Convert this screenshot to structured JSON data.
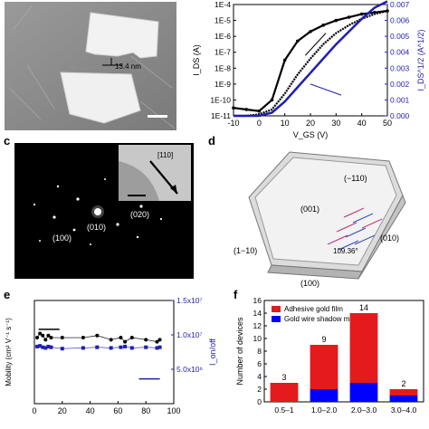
{
  "panels": {
    "a": {
      "label": "",
      "scale_text": "13.4 nm"
    },
    "b": {
      "label": "",
      "ylabel_left": "I_DS (A)",
      "ylabel_right": "I_DS^1/2 (A^1/2)",
      "xlabel": "V_GS (V)"
    },
    "c": {
      "label": "c",
      "spots": [
        "(010)",
        "(020)",
        "(100)"
      ],
      "inset_label": "[110]"
    },
    "d": {
      "label": "d",
      "faces": [
        "(001)",
        "(−110)",
        "(1−10)",
        "(010)",
        "(100)"
      ],
      "angle": "109.36°"
    },
    "e": {
      "label": "e",
      "ylabel_left": "Mobility (cm² V⁻¹ s⁻¹)",
      "ylabel_right": "I_on/off"
    },
    "f": {
      "label": "f",
      "legend": [
        "Adhesive gold film",
        "Gold wire shadow mask"
      ],
      "ylabel": "Number of devices"
    }
  },
  "colors": {
    "adhesive": "#e41a1c",
    "shadow": "#0000ff",
    "axis_right": "#1f1fb4",
    "sem_bg": "#8a8a8a"
  },
  "chart_data": [
    {
      "type": "line",
      "panel": "b",
      "x": [
        -10,
        -5,
        0,
        5,
        10,
        15,
        20,
        25,
        30,
        35,
        40,
        45,
        50
      ],
      "xlim": [
        -10,
        50
      ],
      "xticks": [
        "-10",
        "0",
        "10",
        "20",
        "30",
        "40",
        "50"
      ],
      "yticks_left": [
        "1E-11",
        "1E-10",
        "1E-9",
        "1E-8",
        "1E-7",
        "1E-6",
        "1E-5",
        "1E-4"
      ],
      "yticks_right": [
        "0.000",
        "0.001",
        "0.002",
        "0.003",
        "0.004",
        "0.005",
        "0.006",
        "0.007"
      ],
      "ylim_right": [
        0,
        0.007
      ],
      "series": [
        {
          "axis": "left",
          "log10_values_forward": [
            -10.5,
            -10.6,
            -10.7,
            -10.0,
            -7.5,
            -6.3,
            -5.7,
            -5.3,
            -5.0,
            -4.8,
            -4.6,
            -4.5,
            -4.4
          ]
        },
        {
          "axis": "left",
          "log10_values_reverse": [
            -11.0,
            -11.0,
            -10.9,
            -10.6,
            -9.6,
            -8.4,
            -7.4,
            -6.5,
            -5.8,
            -5.3,
            -4.9,
            -4.6,
            -4.4
          ]
        },
        {
          "axis": "right",
          "values": [
            0,
            0,
            0,
            0.0002,
            0.0009,
            0.0018,
            0.0027,
            0.0036,
            0.0045,
            0.0053,
            0.0061,
            0.0068,
            0.0072
          ]
        }
      ]
    },
    {
      "type": "scatter",
      "panel": "e",
      "xticks": [
        "0",
        "20",
        "40",
        "60",
        "80",
        "100"
      ],
      "xlim": [
        0,
        100
      ],
      "yticks_right": [
        "5.0x10⁶",
        "1.0x10⁷",
        "1.5x10⁷"
      ],
      "ylim_right": [
        0,
        15000000
      ],
      "series": [
        {
          "axis": "left-mobility",
          "x": [
            2,
            4,
            6,
            8,
            10,
            12,
            20,
            35,
            45,
            55,
            62,
            65,
            70,
            80,
            88,
            90
          ],
          "values": [
            3.2,
            3.4,
            3.3,
            3.1,
            3.3,
            3.2,
            3.2,
            3.2,
            3.3,
            3.1,
            3.2,
            3.0,
            3.2,
            3.1,
            3.0,
            3.1
          ]
        },
        {
          "axis": "right",
          "x": [
            2,
            4,
            6,
            8,
            10,
            12,
            20,
            35,
            45,
            55,
            62,
            65,
            70,
            80,
            88,
            90
          ],
          "values": [
            8300000,
            8400000,
            8200000,
            8100000,
            8300000,
            8200000,
            8000000,
            8100000,
            8200000,
            8100000,
            8200000,
            8300000,
            8100000,
            8200000,
            8100000,
            8200000
          ]
        }
      ]
    },
    {
      "type": "bar",
      "panel": "f",
      "categories": [
        "0.5–1",
        "1.0–2.0",
        "2.0–3.0",
        "3.0–4.0"
      ],
      "series": [
        {
          "name": "Adhesive gold film",
          "values": [
            3,
            7,
            11,
            1
          ]
        },
        {
          "name": "Gold wire shadow mask",
          "values": [
            0,
            2,
            3,
            1
          ]
        }
      ],
      "totals": [
        "3",
        "9",
        "14",
        "2"
      ],
      "ylim": [
        0,
        16
      ],
      "yticks": [
        "0",
        "2",
        "4",
        "6",
        "8",
        "10",
        "12",
        "14",
        "16"
      ]
    }
  ]
}
